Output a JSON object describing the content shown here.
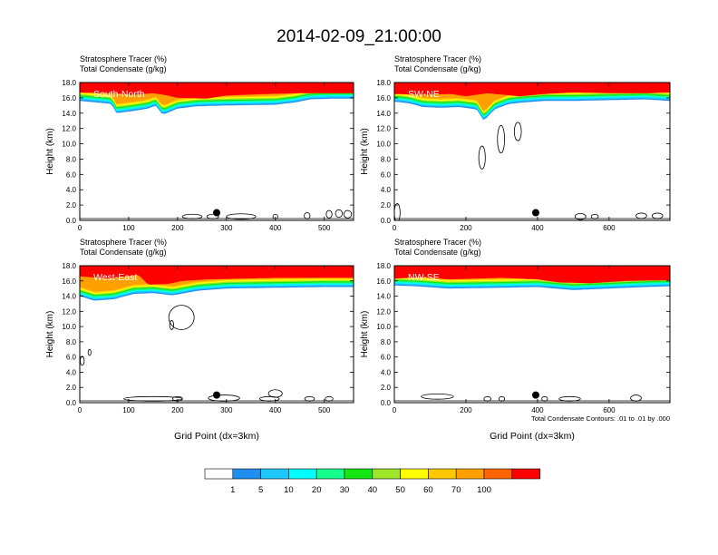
{
  "title": "2014-02-09_21:00:00",
  "colors": {
    "fill_stops": [
      "#ffffff",
      "#1e8ff0",
      "#1ec8ff",
      "#00ffff",
      "#14ff8c",
      "#14e614",
      "#a0e628",
      "#ffff00",
      "#ffc800",
      "#ffa000",
      "#ff6400",
      "#ff0000"
    ]
  },
  "chart_data": {
    "type": "contour-panels",
    "legend_placement": "bottom-center",
    "colorbar": {
      "labels": [
        "1",
        "5",
        "10",
        "20",
        "30",
        "40",
        "50",
        "60",
        "70",
        "100"
      ],
      "levels": [
        1,
        5,
        10,
        20,
        30,
        40,
        50,
        60,
        70,
        100
      ]
    },
    "footnote": "Total Condensate Contours: .01 to .01 by .000",
    "xlabel": "Grid Point (dx=3km)",
    "ylabel": "Height (km)",
    "field_labels": [
      "Stratosphere Tracer   (%)",
      "Total Condensate   (g/kg)"
    ],
    "panels": [
      {
        "label": "South-North",
        "xlim": [
          0,
          560
        ],
        "ylim": [
          0,
          18
        ],
        "xticks": [
          0,
          100,
          200,
          300,
          400,
          500
        ],
        "yticks": [
          "0.0",
          "2.0",
          "4.0",
          "6.0",
          "8.0",
          "10.0",
          "12.0",
          "14.0",
          "16.0",
          "18.0"
        ],
        "show_xlabel": false,
        "show_footnote": false,
        "tracer_base": [
          [
            0,
            15.6
          ],
          [
            35,
            15.4
          ],
          [
            65,
            15.2
          ],
          [
            75,
            14.0
          ],
          [
            110,
            14.3
          ],
          [
            140,
            14.6
          ],
          [
            155,
            15.0
          ],
          [
            170,
            13.8
          ],
          [
            200,
            14.6
          ],
          [
            240,
            14.9
          ],
          [
            300,
            15.0
          ],
          [
            400,
            15.1
          ],
          [
            440,
            15.4
          ],
          [
            470,
            15.8
          ],
          [
            520,
            15.9
          ],
          [
            560,
            15.9
          ]
        ],
        "red_base": [
          [
            0,
            16.7
          ],
          [
            60,
            16.6
          ],
          [
            110,
            16.4
          ],
          [
            150,
            16.6
          ],
          [
            180,
            16.3
          ],
          [
            200,
            16.0
          ],
          [
            260,
            15.9
          ],
          [
            300,
            16.3
          ],
          [
            380,
            16.5
          ],
          [
            450,
            16.6
          ],
          [
            560,
            16.6
          ]
        ],
        "marker": [
          280,
          1.0
        ],
        "condensate_contours": [
          {
            "cx": 230,
            "cy": 0.5,
            "rx": 20,
            "ry": 0.3
          },
          {
            "cx": 272,
            "cy": 0.5,
            "rx": 12,
            "ry": 0.3
          },
          {
            "cx": 330,
            "cy": 0.5,
            "rx": 30,
            "ry": 0.35
          },
          {
            "cx": 400,
            "cy": 0.5,
            "rx": 5,
            "ry": 0.3
          },
          {
            "cx": 465,
            "cy": 0.6,
            "rx": 6,
            "ry": 0.4
          },
          {
            "cx": 510,
            "cy": 0.8,
            "rx": 6,
            "ry": 0.5
          },
          {
            "cx": 530,
            "cy": 0.9,
            "rx": 7,
            "ry": 0.5
          },
          {
            "cx": 548,
            "cy": 0.8,
            "rx": 8,
            "ry": 0.5
          }
        ]
      },
      {
        "label": "SW-NE",
        "xlim": [
          0,
          770
        ],
        "ylim": [
          0,
          18
        ],
        "xticks": [
          0,
          200,
          400,
          600
        ],
        "yticks": [
          "0.0",
          "2.0",
          "4.0",
          "6.0",
          "8.0",
          "10.0",
          "12.0",
          "14.0",
          "16.0",
          "18.0"
        ],
        "show_xlabel": false,
        "show_footnote": false,
        "tracer_base": [
          [
            0,
            15.5
          ],
          [
            40,
            15.3
          ],
          [
            80,
            14.8
          ],
          [
            130,
            14.7
          ],
          [
            180,
            14.8
          ],
          [
            230,
            14.5
          ],
          [
            250,
            13.0
          ],
          [
            280,
            14.5
          ],
          [
            320,
            15.2
          ],
          [
            360,
            15.4
          ],
          [
            420,
            15.6
          ],
          [
            500,
            15.6
          ],
          [
            600,
            15.7
          ],
          [
            700,
            15.8
          ],
          [
            770,
            15.6
          ]
        ],
        "red_base": [
          [
            0,
            16.5
          ],
          [
            80,
            16.4
          ],
          [
            160,
            16.5
          ],
          [
            200,
            16.2
          ],
          [
            260,
            16.6
          ],
          [
            350,
            16.2
          ],
          [
            420,
            16.5
          ],
          [
            500,
            16.7
          ],
          [
            620,
            16.6
          ],
          [
            700,
            16.6
          ],
          [
            770,
            16.7
          ]
        ],
        "marker": [
          395,
          1.0
        ],
        "condensate_contours": [
          {
            "cx": 245,
            "cy": 8.2,
            "rx": 9,
            "ry": 1.5
          },
          {
            "cx": 298,
            "cy": 10.6,
            "rx": 10,
            "ry": 1.8
          },
          {
            "cx": 345,
            "cy": 11.6,
            "rx": 10,
            "ry": 1.2
          },
          {
            "cx": 8,
            "cy": 1.0,
            "rx": 8,
            "ry": 1.2
          },
          {
            "cx": 520,
            "cy": 0.5,
            "rx": 15,
            "ry": 0.4
          },
          {
            "cx": 560,
            "cy": 0.5,
            "rx": 10,
            "ry": 0.3
          },
          {
            "cx": 690,
            "cy": 0.6,
            "rx": 15,
            "ry": 0.35
          },
          {
            "cx": 735,
            "cy": 0.6,
            "rx": 15,
            "ry": 0.35
          }
        ]
      },
      {
        "label": "West-East",
        "xlim": [
          0,
          560
        ],
        "ylim": [
          0,
          18
        ],
        "xticks": [
          0,
          100,
          200,
          300,
          400,
          500
        ],
        "yticks": [
          "0.0",
          "2.0",
          "4.0",
          "6.0",
          "8.0",
          "10.0",
          "12.0",
          "14.0",
          "16.0",
          "18.0"
        ],
        "show_xlabel": true,
        "show_footnote": false,
        "tracer_base": [
          [
            0,
            14.0
          ],
          [
            30,
            13.4
          ],
          [
            70,
            13.6
          ],
          [
            110,
            14.3
          ],
          [
            150,
            14.4
          ],
          [
            190,
            14.1
          ],
          [
            240,
            14.7
          ],
          [
            300,
            15.0
          ],
          [
            400,
            15.1
          ],
          [
            500,
            15.2
          ],
          [
            560,
            15.2
          ]
        ],
        "red_base": [
          [
            0,
            16.6
          ],
          [
            60,
            16.3
          ],
          [
            120,
            16.8
          ],
          [
            140,
            15.5
          ],
          [
            180,
            15.6
          ],
          [
            210,
            16.0
          ],
          [
            260,
            16.2
          ],
          [
            400,
            16.4
          ],
          [
            560,
            16.4
          ]
        ],
        "marker": [
          280,
          1.0
        ],
        "condensate_contours": [
          {
            "cx": 208,
            "cy": 11.2,
            "rx": 26,
            "ry": 1.6
          },
          {
            "cx": 188,
            "cy": 10.2,
            "rx": 4,
            "ry": 0.6
          },
          {
            "cx": 5,
            "cy": 5.5,
            "rx": 4,
            "ry": 0.6
          },
          {
            "cx": 20,
            "cy": 6.6,
            "rx": 3,
            "ry": 0.4
          },
          {
            "cx": 150,
            "cy": 0.5,
            "rx": 60,
            "ry": 0.3
          },
          {
            "cx": 200,
            "cy": 0.5,
            "rx": 10,
            "ry": 0.3
          },
          {
            "cx": 295,
            "cy": 0.6,
            "rx": 32,
            "ry": 0.4
          },
          {
            "cx": 400,
            "cy": 1.2,
            "rx": 14,
            "ry": 0.5
          },
          {
            "cx": 388,
            "cy": 0.5,
            "rx": 20,
            "ry": 0.3
          },
          {
            "cx": 470,
            "cy": 0.5,
            "rx": 10,
            "ry": 0.3
          },
          {
            "cx": 510,
            "cy": 0.5,
            "rx": 8,
            "ry": 0.3
          }
        ]
      },
      {
        "label": "NW-SE",
        "xlim": [
          0,
          770
        ],
        "ylim": [
          0,
          18
        ],
        "xticks": [
          0,
          200,
          400,
          600
        ],
        "yticks": [
          "0.0",
          "2.0",
          "4.0",
          "6.0",
          "8.0",
          "10.0",
          "12.0",
          "14.0",
          "16.0",
          "18.0"
        ],
        "show_xlabel": true,
        "show_footnote": true,
        "tracer_base": [
          [
            0,
            15.4
          ],
          [
            60,
            15.3
          ],
          [
            150,
            15.0
          ],
          [
            300,
            15.1
          ],
          [
            400,
            15.2
          ],
          [
            500,
            14.8
          ],
          [
            600,
            15.0
          ],
          [
            700,
            15.2
          ],
          [
            770,
            15.3
          ]
        ],
        "red_base": [
          [
            0,
            16.3
          ],
          [
            80,
            16.5
          ],
          [
            150,
            16.2
          ],
          [
            300,
            16.4
          ],
          [
            400,
            16.2
          ],
          [
            460,
            15.8
          ],
          [
            550,
            15.7
          ],
          [
            650,
            16.0
          ],
          [
            770,
            16.1
          ]
        ],
        "marker": [
          395,
          1.0
        ],
        "condensate_contours": [
          {
            "cx": 120,
            "cy": 0.8,
            "rx": 45,
            "ry": 0.35
          },
          {
            "cx": 260,
            "cy": 0.5,
            "rx": 10,
            "ry": 0.3
          },
          {
            "cx": 300,
            "cy": 0.5,
            "rx": 8,
            "ry": 0.3
          },
          {
            "cx": 420,
            "cy": 0.5,
            "rx": 8,
            "ry": 0.3
          },
          {
            "cx": 490,
            "cy": 0.5,
            "rx": 30,
            "ry": 0.3
          },
          {
            "cx": 675,
            "cy": 0.6,
            "rx": 15,
            "ry": 0.4
          }
        ]
      }
    ]
  }
}
